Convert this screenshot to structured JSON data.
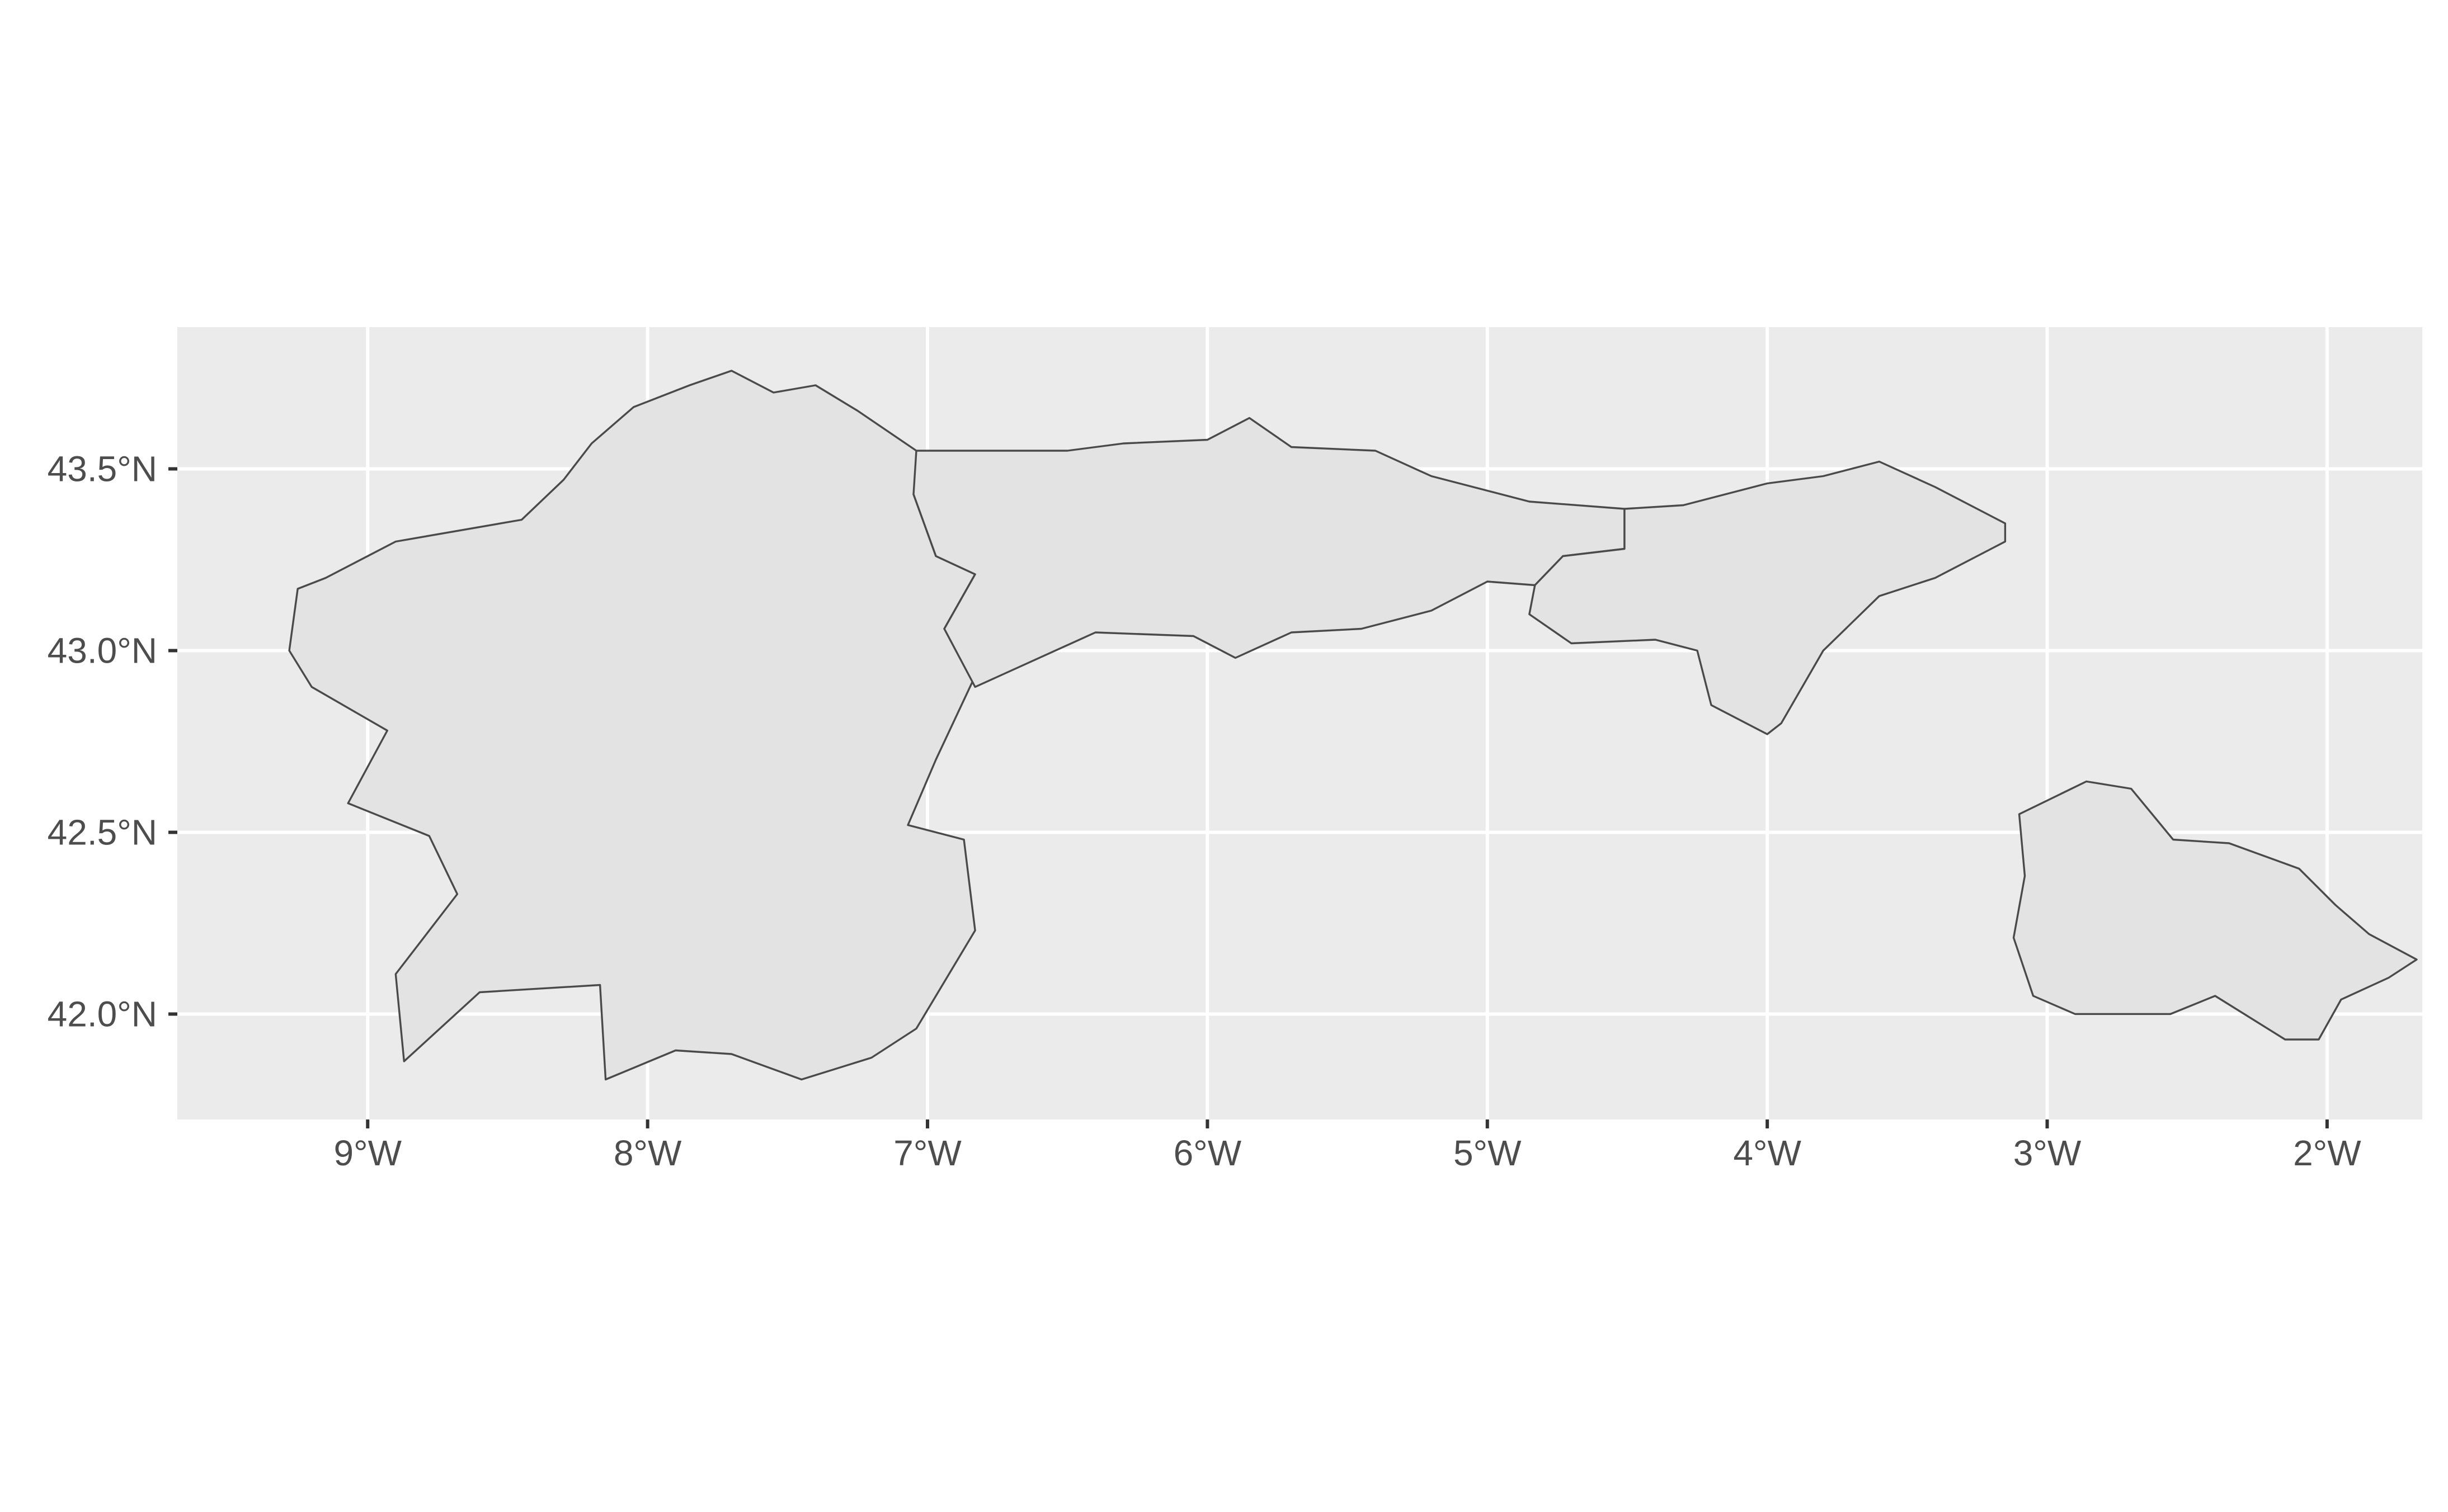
{
  "chart_data": {
    "type": "map",
    "projection": "geographic (longitude / latitude)",
    "x_axis": {
      "ticks": [
        -9,
        -8,
        -7,
        -6,
        -5,
        -4,
        -3,
        -2
      ],
      "tick_labels": [
        "9°W",
        "8°W",
        "7°W",
        "6°W",
        "5°W",
        "4°W",
        "3°W",
        "2°W"
      ],
      "range": [
        -9.68,
        -1.66
      ]
    },
    "y_axis": {
      "ticks": [
        42.0,
        42.5,
        43.0,
        43.5
      ],
      "tick_labels": [
        "42.0°N",
        "42.5°N",
        "43.0°N",
        "43.5°N"
      ],
      "range": [
        41.71,
        43.89
      ]
    },
    "grid": true,
    "legend": "none",
    "colors": {
      "panel_background": "#ebebeb",
      "gridlines": "#ffffff",
      "region_fill": "#e3e3e3",
      "region_outline": "#4a4a4a",
      "tick_labels": "#4d4d4d"
    },
    "regions": [
      {
        "id": "galicia",
        "outline": [
          [
            -8.05,
            43.67
          ],
          [
            -7.85,
            43.73
          ],
          [
            -7.7,
            43.77
          ],
          [
            -7.55,
            43.71
          ],
          [
            -7.4,
            43.73
          ],
          [
            -7.25,
            43.66
          ],
          [
            -7.04,
            43.55
          ],
          [
            -6.95,
            43.54
          ],
          [
            -7.05,
            43.43
          ],
          [
            -6.97,
            43.26
          ],
          [
            -6.83,
            43.21
          ],
          [
            -6.94,
            43.06
          ],
          [
            -6.83,
            43.01
          ],
          [
            -6.83,
            42.93
          ],
          [
            -6.97,
            42.7
          ],
          [
            -7.07,
            42.52
          ],
          [
            -6.87,
            42.48
          ],
          [
            -6.83,
            42.23
          ],
          [
            -7.04,
            41.96
          ],
          [
            -7.2,
            41.88
          ],
          [
            -7.45,
            41.82
          ],
          [
            -7.7,
            41.89
          ],
          [
            -7.9,
            41.9
          ],
          [
            -8.15,
            41.82
          ],
          [
            -8.17,
            42.08
          ],
          [
            -8.6,
            42.06
          ],
          [
            -8.87,
            41.87
          ],
          [
            -8.9,
            42.11
          ],
          [
            -8.68,
            42.33
          ],
          [
            -8.78,
            42.49
          ],
          [
            -9.07,
            42.58
          ],
          [
            -8.93,
            42.78
          ],
          [
            -9.2,
            42.9
          ],
          [
            -9.28,
            43.0
          ],
          [
            -9.25,
            43.17
          ],
          [
            -9.15,
            43.2
          ],
          [
            -8.9,
            43.3
          ],
          [
            -8.45,
            43.36
          ],
          [
            -8.3,
            43.47
          ],
          [
            -8.2,
            43.57
          ],
          [
            -8.05,
            43.67
          ]
        ]
      },
      {
        "id": "asturias",
        "outline": [
          [
            -7.04,
            43.55
          ],
          [
            -6.5,
            43.55
          ],
          [
            -6.3,
            43.57
          ],
          [
            -6.0,
            43.58
          ],
          [
            -5.85,
            43.64
          ],
          [
            -5.7,
            43.56
          ],
          [
            -5.4,
            43.55
          ],
          [
            -5.2,
            43.48
          ],
          [
            -5.0,
            43.44
          ],
          [
            -4.85,
            43.41
          ],
          [
            -4.51,
            43.39
          ],
          [
            -4.51,
            43.28
          ],
          [
            -4.73,
            43.26
          ],
          [
            -4.83,
            43.18
          ],
          [
            -5.0,
            43.19
          ],
          [
            -5.2,
            43.11
          ],
          [
            -5.45,
            43.06
          ],
          [
            -5.7,
            43.05
          ],
          [
            -5.9,
            42.98
          ],
          [
            -6.05,
            43.04
          ],
          [
            -6.4,
            43.05
          ],
          [
            -6.83,
            42.9
          ],
          [
            -6.94,
            43.06
          ],
          [
            -6.83,
            43.21
          ],
          [
            -6.97,
            43.26
          ],
          [
            -7.05,
            43.43
          ],
          [
            -7.04,
            43.55
          ]
        ]
      },
      {
        "id": "cantabria",
        "outline": [
          [
            -4.51,
            43.39
          ],
          [
            -4.3,
            43.4
          ],
          [
            -4.0,
            43.46
          ],
          [
            -3.8,
            43.48
          ],
          [
            -3.6,
            43.52
          ],
          [
            -3.4,
            43.45
          ],
          [
            -3.15,
            43.35
          ],
          [
            -3.15,
            43.3
          ],
          [
            -3.4,
            43.2
          ],
          [
            -3.6,
            43.15
          ],
          [
            -3.8,
            43.0
          ],
          [
            -3.95,
            42.8
          ],
          [
            -4.0,
            42.77
          ],
          [
            -4.2,
            42.85
          ],
          [
            -4.25,
            43.0
          ],
          [
            -4.4,
            43.03
          ],
          [
            -4.7,
            43.02
          ],
          [
            -4.85,
            43.1
          ],
          [
            -4.83,
            43.18
          ],
          [
            -4.73,
            43.26
          ],
          [
            -4.51,
            43.28
          ],
          [
            -4.51,
            43.39
          ]
        ]
      },
      {
        "id": "la-rioja",
        "outline": [
          [
            -2.86,
            42.64
          ],
          [
            -2.7,
            42.62
          ],
          [
            -2.55,
            42.48
          ],
          [
            -2.35,
            42.47
          ],
          [
            -2.1,
            42.4
          ],
          [
            -1.97,
            42.3
          ],
          [
            -1.85,
            42.22
          ],
          [
            -1.68,
            42.15
          ],
          [
            -1.78,
            42.1
          ],
          [
            -1.95,
            42.04
          ],
          [
            -2.03,
            41.93
          ],
          [
            -2.15,
            41.93
          ],
          [
            -2.4,
            42.05
          ],
          [
            -2.56,
            42.0
          ],
          [
            -2.9,
            42.0
          ],
          [
            -3.05,
            42.05
          ],
          [
            -3.12,
            42.21
          ],
          [
            -3.08,
            42.38
          ],
          [
            -3.1,
            42.55
          ],
          [
            -2.86,
            42.64
          ]
        ]
      }
    ]
  }
}
